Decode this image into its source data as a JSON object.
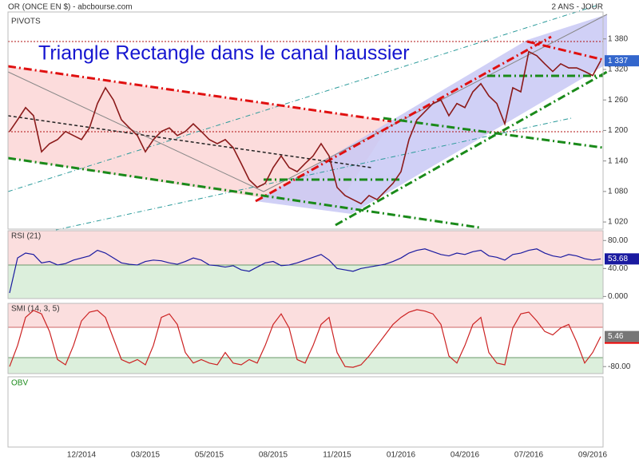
{
  "header": {
    "source": "OR (ONCE EN $) - abcbourse.com",
    "period": "2 ANS - JOUR",
    "overlay": "PIVOTS"
  },
  "chart_data": [
    {
      "type": "line",
      "title": "Triangle Rectangle  dans le canal haussier",
      "color": "#8b1a1a",
      "categories": [
        null,
        null,
        null,
        null,
        null,
        null,
        null,
        null,
        null,
        "12/2014",
        null,
        null,
        null,
        null,
        null,
        null,
        null,
        "03/2015",
        null,
        null,
        null,
        null,
        null,
        null,
        null,
        "05/2015",
        null,
        null,
        null,
        null,
        null,
        null,
        null,
        "08/2015",
        null,
        null,
        null,
        null,
        null,
        null,
        null,
        "11/2015",
        null,
        null,
        null,
        null,
        null,
        null,
        null,
        "01/2016",
        null,
        null,
        null,
        null,
        null,
        null,
        null,
        "04/2016",
        null,
        null,
        null,
        null,
        null,
        null,
        null,
        "07/2016",
        null,
        null,
        null,
        null,
        null,
        null,
        null,
        "09/2016",
        null
      ],
      "values": [
        1198,
        1221,
        1245,
        1229,
        1158,
        1174,
        1182,
        1198,
        1190,
        1182,
        1205,
        1253,
        1284,
        1260,
        1221,
        1205,
        1190,
        1158,
        1182,
        1198,
        1205,
        1190,
        1198,
        1213,
        1198,
        1182,
        1174,
        1182,
        1166,
        1135,
        1103,
        1088,
        1096,
        1127,
        1150,
        1127,
        1119,
        1135,
        1150,
        1174,
        1150,
        1088,
        1072,
        1064,
        1056,
        1072,
        1064,
        1080,
        1096,
        1119,
        1182,
        1221,
        1237,
        1253,
        1260,
        1229,
        1253,
        1245,
        1276,
        1292,
        1268,
        1253,
        1213,
        1284,
        1276,
        1355,
        1347,
        1331,
        1316,
        1331,
        1323,
        1323,
        1316,
        1308,
        1337
      ],
      "ylim": [
        1006,
        1433
      ],
      "yticks": [
        {
          "value": 1380,
          "label": "1 380"
        },
        {
          "value": 1320,
          "label": "1 320"
        },
        {
          "value": 1260,
          "label": "1 260"
        },
        {
          "value": 1200,
          "label": "1 200"
        },
        {
          "value": 1140,
          "label": "1 140"
        },
        {
          "value": 1080,
          "label": "1 080"
        },
        {
          "value": 1020,
          "label": "1 020"
        }
      ],
      "current": {
        "value": 1337,
        "label": "1 337"
      }
    },
    {
      "type": "line",
      "title": "RSI (21)",
      "color": "#1a1aa0",
      "values": [
        5,
        55,
        62,
        60,
        48,
        50,
        45,
        47,
        52,
        55,
        58,
        66,
        62,
        55,
        48,
        46,
        45,
        50,
        52,
        51,
        48,
        46,
        50,
        55,
        52,
        45,
        44,
        42,
        44,
        38,
        36,
        42,
        48,
        50,
        44,
        45,
        48,
        52,
        56,
        60,
        52,
        40,
        38,
        36,
        40,
        42,
        44,
        46,
        50,
        55,
        62,
        66,
        68,
        64,
        60,
        58,
        62,
        60,
        64,
        66,
        58,
        56,
        52,
        60,
        62,
        66,
        68,
        62,
        58,
        56,
        60,
        58,
        54,
        52,
        53.68
      ],
      "ylim": [
        -3,
        94
      ],
      "yticks": [
        {
          "value": 80,
          "label": "80.00"
        },
        {
          "value": 40,
          "label": "40.00"
        },
        {
          "value": 0,
          "label": "0.000"
        }
      ],
      "current": 53.68
    },
    {
      "type": "line",
      "title": "SMI (14, 3, 5)",
      "color": "#cc2222",
      "values": [
        -80,
        -20,
        60,
        80,
        70,
        20,
        -60,
        -75,
        -20,
        50,
        75,
        80,
        60,
        0,
        -60,
        -70,
        -60,
        -75,
        -20,
        60,
        70,
        40,
        -40,
        -70,
        -60,
        -70,
        -75,
        -40,
        -70,
        -75,
        -60,
        -70,
        -20,
        40,
        70,
        30,
        -60,
        -70,
        -20,
        40,
        60,
        -40,
        -80,
        -82,
        -75,
        -50,
        -20,
        10,
        40,
        60,
        75,
        82,
        78,
        70,
        40,
        -50,
        -70,
        -20,
        40,
        60,
        -40,
        -70,
        -75,
        30,
        70,
        75,
        50,
        20,
        10,
        30,
        40,
        -10,
        -70,
        -40,
        5.46
      ],
      "ylim": [
        -100,
        100
      ],
      "yticks": [
        {
          "value": -80,
          "label": "-80.00"
        }
      ],
      "current": 5.46
    },
    {
      "type": "volume",
      "title": "OBV"
    }
  ]
}
